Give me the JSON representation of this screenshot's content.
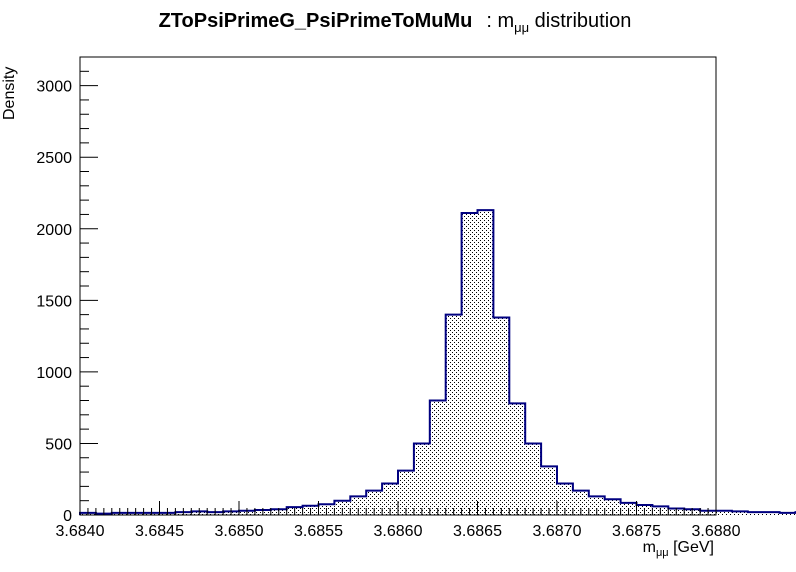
{
  "title": {
    "bold": "ZToPsiPrimeG_PsiPrimeToMuMu",
    "rest_prefix": ": m",
    "rest_sub": "μμ",
    "rest_suffix": " distribution"
  },
  "xaxis": {
    "label_main": "m",
    "label_sub": "μμ",
    "label_unit": " [GeV]"
  },
  "yaxis": {
    "label": "Density"
  },
  "colors": {
    "line": "#000080",
    "fill_pattern": "#000000",
    "axis": "#000000",
    "background": "#ffffff"
  },
  "chart_data": {
    "type": "histogram",
    "title": "ZToPsiPrimeG_PsiPrimeToMuMu : m_μμ distribution",
    "xlabel": "m_μμ [GeV]",
    "ylabel": "Density",
    "xlim": [
      3.684,
      3.688
    ],
    "ylim": [
      0,
      3200
    ],
    "grid": false,
    "legend": "none",
    "x_ticks": [
      "3.6840",
      "3.6845",
      "3.6850",
      "3.6855",
      "3.6860",
      "3.6865",
      "3.6870",
      "3.6875",
      "3.6880"
    ],
    "y_ticks": [
      "0",
      "500",
      "1000",
      "1500",
      "2000",
      "2500",
      "3000"
    ],
    "bin_edges_start": 3.684,
    "bin_width": 0.0001,
    "values": [
      15,
      10,
      15,
      15,
      15,
      15,
      20,
      25,
      20,
      25,
      30,
      35,
      40,
      55,
      65,
      75,
      100,
      130,
      170,
      220,
      310,
      500,
      800,
      1400,
      2110,
      2130,
      1380,
      780,
      500,
      340,
      220,
      170,
      130,
      110,
      85,
      70,
      60,
      45,
      40,
      30,
      30,
      25,
      20,
      20,
      15,
      20,
      15,
      10,
      20,
      20
    ]
  }
}
